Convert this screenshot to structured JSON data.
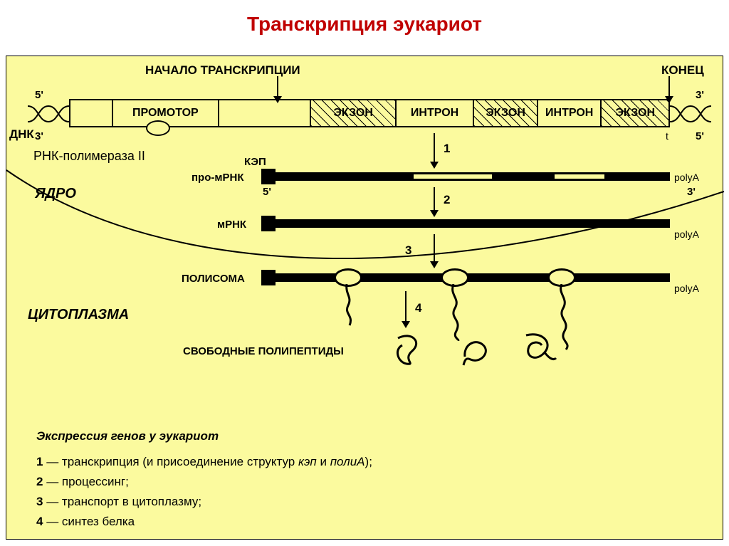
{
  "title": "Транскрипция эукариот",
  "top_labels": {
    "start": "НАЧАЛО ТРАНСКРИПЦИИ",
    "end": "КОНЕЦ"
  },
  "dna": {
    "label": "ДНК",
    "five_prime": "5'",
    "three_prime": "3'",
    "five_prime_r": "5'",
    "three_prime_r": "3'",
    "t_mark": "t",
    "segments": [
      {
        "label": "",
        "width": 60,
        "hatched": false
      },
      {
        "label": "ПРОМОТОР",
        "width": 150,
        "hatched": false
      },
      {
        "label": "",
        "width": 130,
        "hatched": false
      },
      {
        "label": "ЭКЗОН",
        "width": 120,
        "hatched": true
      },
      {
        "label": "ИНТРОН",
        "width": 110,
        "hatched": false
      },
      {
        "label": "ЭКЗОН",
        "width": 90,
        "hatched": true
      },
      {
        "label": "ИНТРОН",
        "width": 90,
        "hatched": false
      },
      {
        "label": "ЭКЗОН",
        "width": 94,
        "hatched": true
      }
    ]
  },
  "polymerase_label": "РНК-полимераза II",
  "compartments": {
    "nucleus": "ЯДРО",
    "cytoplasm": "ЦИТОПЛАЗМА"
  },
  "steps": {
    "s1": "1",
    "s2": "2",
    "s3": "3",
    "s4": "4"
  },
  "stage_labels": {
    "cap": "КЭП",
    "pro_mrna": "про-мРНК",
    "mrna": "мРНК",
    "polysome": "ПОЛИСОМА",
    "free_polypeptides": "СВОБОДНЫЕ ПОЛИПЕПТИДЫ",
    "polyA": "polyA",
    "five_prime": "5'",
    "three_prime": "3'"
  },
  "legend": {
    "header": "Экспрессия генов у эукариот",
    "items": [
      {
        "n": "1",
        "text": "транскрипция (и присоединение структур",
        "ital": "кэп",
        "text2": " и ",
        "ital2": "полиА",
        "tail": ");"
      },
      {
        "n": "2",
        "text": "процессинг;"
      },
      {
        "n": "3",
        "text": "транспорт в цитоплазму;"
      },
      {
        "n": "4",
        "text": "синтез белка"
      }
    ]
  },
  "colors": {
    "bg": "#fbfa9e",
    "title": "#c00000",
    "line": "#000000"
  }
}
